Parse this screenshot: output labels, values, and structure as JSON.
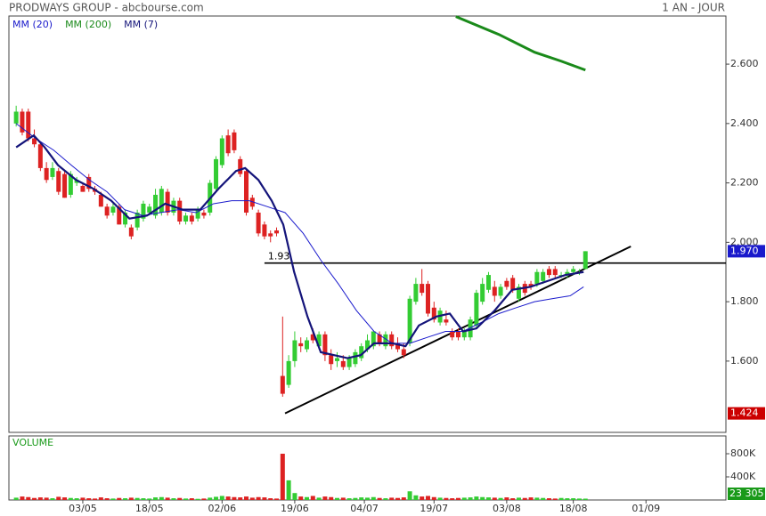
{
  "chart_data": [
    {
      "type": "candlestick",
      "title": "PRODWAYS GROUP - abcbourse.com",
      "period": "1 AN - JOUR",
      "xlim": [
        -1.2,
        117.2
      ],
      "ylim": [
        1.36,
        2.762
      ],
      "yticks": [
        {
          "value": 1.6,
          "label": "1.600"
        },
        {
          "value": 1.8,
          "label": "1.800"
        },
        {
          "value": 2.0,
          "label": "2.000"
        },
        {
          "value": 2.2,
          "label": "2.200"
        },
        {
          "value": 2.4,
          "label": "2.400"
        },
        {
          "value": 2.6,
          "label": "2.600"
        }
      ],
      "xticks": [
        {
          "value": 11,
          "label": "03/05"
        },
        {
          "value": 22,
          "label": "18/05"
        },
        {
          "value": 34,
          "label": "02/06"
        },
        {
          "value": 46,
          "label": "19/06"
        },
        {
          "value": 57.5,
          "label": "04/07"
        },
        {
          "value": 69,
          "label": "19/07"
        },
        {
          "value": 81,
          "label": "03/08"
        },
        {
          "value": 92,
          "label": "18/08"
        },
        {
          "value": 104,
          "label": "01/09"
        }
      ],
      "up_color": "#33cc33",
      "down_color": "#dd2222",
      "candles": [
        [
          2.4,
          2.46,
          2.39,
          2.44
        ],
        [
          2.44,
          2.45,
          2.36,
          2.37
        ],
        [
          2.44,
          2.45,
          2.34,
          2.35
        ],
        [
          2.35,
          2.38,
          2.32,
          2.33
        ],
        [
          2.33,
          2.34,
          2.24,
          2.25
        ],
        [
          2.25,
          2.27,
          2.2,
          2.21
        ],
        [
          2.22,
          2.27,
          2.21,
          2.25
        ],
        [
          2.24,
          2.25,
          2.16,
          2.17
        ],
        [
          2.23,
          2.24,
          2.15,
          2.15
        ],
        [
          2.16,
          2.24,
          2.15,
          2.23
        ],
        [
          2.2,
          2.22,
          2.19,
          2.21
        ],
        [
          2.19,
          2.2,
          2.17,
          2.17
        ],
        [
          2.22,
          2.23,
          2.17,
          2.18
        ],
        [
          2.18,
          2.19,
          2.16,
          2.17
        ],
        [
          2.16,
          2.17,
          2.12,
          2.12
        ],
        [
          2.12,
          2.13,
          2.08,
          2.09
        ],
        [
          2.1,
          2.13,
          2.09,
          2.12
        ],
        [
          2.12,
          2.13,
          2.06,
          2.06
        ],
        [
          2.06,
          2.11,
          2.05,
          2.1
        ],
        [
          2.05,
          2.06,
          2.01,
          2.02
        ],
        [
          2.05,
          2.11,
          2.04,
          2.1
        ],
        [
          2.08,
          2.14,
          2.07,
          2.13
        ],
        [
          2.1,
          2.13,
          2.09,
          2.12
        ],
        [
          2.09,
          2.18,
          2.08,
          2.16
        ],
        [
          2.1,
          2.19,
          2.09,
          2.18
        ],
        [
          2.17,
          2.18,
          2.09,
          2.1
        ],
        [
          2.1,
          2.15,
          2.09,
          2.14
        ],
        [
          2.14,
          2.15,
          2.06,
          2.07
        ],
        [
          2.07,
          2.1,
          2.06,
          2.09
        ],
        [
          2.09,
          2.1,
          2.06,
          2.07
        ],
        [
          2.08,
          2.12,
          2.07,
          2.11
        ],
        [
          2.1,
          2.11,
          2.08,
          2.09
        ],
        [
          2.1,
          2.21,
          2.09,
          2.2
        ],
        [
          2.18,
          2.29,
          2.17,
          2.28
        ],
        [
          2.26,
          2.36,
          2.25,
          2.35
        ],
        [
          2.36,
          2.38,
          2.29,
          2.3
        ],
        [
          2.37,
          2.38,
          2.3,
          2.31
        ],
        [
          2.28,
          2.29,
          2.22,
          2.23
        ],
        [
          2.24,
          2.25,
          2.09,
          2.1
        ],
        [
          2.15,
          2.16,
          2.11,
          2.12
        ],
        [
          2.1,
          2.11,
          2.02,
          2.03
        ],
        [
          2.06,
          2.07,
          2.01,
          2.02
        ],
        [
          2.03,
          2.04,
          2.0,
          2.02
        ],
        [
          2.04,
          2.05,
          2.02,
          2.03
        ],
        [
          1.55,
          1.75,
          1.48,
          1.49
        ],
        [
          1.52,
          1.62,
          1.51,
          1.6
        ],
        [
          1.6,
          1.7,
          1.58,
          1.67
        ],
        [
          1.66,
          1.68,
          1.63,
          1.65
        ],
        [
          1.64,
          1.68,
          1.63,
          1.67
        ],
        [
          1.69,
          1.71,
          1.66,
          1.67
        ],
        [
          1.65,
          1.7,
          1.64,
          1.69
        ],
        [
          1.69,
          1.7,
          1.6,
          1.62
        ],
        [
          1.62,
          1.64,
          1.57,
          1.59
        ],
        [
          1.6,
          1.63,
          1.58,
          1.61
        ],
        [
          1.6,
          1.62,
          1.57,
          1.58
        ],
        [
          1.58,
          1.62,
          1.57,
          1.61
        ],
        [
          1.59,
          1.64,
          1.58,
          1.63
        ],
        [
          1.61,
          1.66,
          1.6,
          1.65
        ],
        [
          1.64,
          1.69,
          1.63,
          1.67
        ],
        [
          1.65,
          1.7,
          1.64,
          1.7
        ],
        [
          1.69,
          1.7,
          1.65,
          1.66
        ],
        [
          1.65,
          1.7,
          1.64,
          1.69
        ],
        [
          1.69,
          1.7,
          1.64,
          1.65
        ],
        [
          1.66,
          1.68,
          1.63,
          1.64
        ],
        [
          1.64,
          1.66,
          1.61,
          1.62
        ],
        [
          1.66,
          1.82,
          1.65,
          1.81
        ],
        [
          1.8,
          1.88,
          1.79,
          1.86
        ],
        [
          1.86,
          1.91,
          1.82,
          1.83
        ],
        [
          1.86,
          1.87,
          1.75,
          1.76
        ],
        [
          1.78,
          1.8,
          1.73,
          1.74
        ],
        [
          1.73,
          1.78,
          1.72,
          1.77
        ],
        [
          1.74,
          1.77,
          1.72,
          1.73
        ],
        [
          1.7,
          1.71,
          1.67,
          1.68
        ],
        [
          1.7,
          1.71,
          1.67,
          1.68
        ],
        [
          1.68,
          1.71,
          1.67,
          1.7
        ],
        [
          1.68,
          1.75,
          1.67,
          1.74
        ],
        [
          1.72,
          1.84,
          1.71,
          1.83
        ],
        [
          1.8,
          1.88,
          1.79,
          1.86
        ],
        [
          1.84,
          1.9,
          1.83,
          1.89
        ],
        [
          1.85,
          1.87,
          1.8,
          1.82
        ],
        [
          1.82,
          1.86,
          1.81,
          1.85
        ],
        [
          1.87,
          1.88,
          1.84,
          1.85
        ],
        [
          1.88,
          1.89,
          1.83,
          1.84
        ],
        [
          1.81,
          1.86,
          1.8,
          1.85
        ],
        [
          1.86,
          1.87,
          1.82,
          1.83
        ],
        [
          1.86,
          1.87,
          1.84,
          1.85
        ],
        [
          1.86,
          1.91,
          1.85,
          1.9
        ],
        [
          1.87,
          1.91,
          1.86,
          1.9
        ],
        [
          1.91,
          1.92,
          1.88,
          1.89
        ],
        [
          1.91,
          1.92,
          1.88,
          1.89
        ],
        [
          1.89,
          1.9,
          1.88,
          1.89
        ],
        [
          1.89,
          1.91,
          1.88,
          1.9
        ],
        [
          1.9,
          1.92,
          1.89,
          1.91
        ],
        [
          1.9,
          1.91,
          1.89,
          1.9
        ],
        [
          1.91,
          1.97,
          1.91,
          1.97
        ]
      ],
      "series": [
        {
          "name": "MM (20)",
          "color": "#1a1acc",
          "width": 1,
          "x": [
            0,
            3.2,
            6.2,
            9.1,
            12.1,
            15,
            17.9,
            20.9,
            23.8,
            26.8,
            29.7,
            32.6,
            35.6,
            38.5,
            41.5,
            44.4,
            47.4,
            50.3,
            53.2,
            56.2,
            59.1,
            62.1,
            65,
            67.9,
            70.9,
            73.8,
            76.8,
            79.7,
            82.6,
            85.6,
            88.5,
            91.5,
            93.7
          ],
          "values": [
            2.4,
            2.35,
            2.31,
            2.26,
            2.21,
            2.17,
            2.11,
            2.09,
            2.1,
            2.11,
            2.1,
            2.13,
            2.14,
            2.14,
            2.12,
            2.1,
            2.03,
            1.94,
            1.86,
            1.77,
            1.7,
            1.66,
            1.66,
            1.68,
            1.7,
            1.7,
            1.73,
            1.76,
            1.78,
            1.8,
            1.81,
            1.82,
            1.85
          ]
        },
        {
          "name": "MM (200)",
          "color": "#1a8a1a",
          "width": 3,
          "x": [
            72.6,
            79.7,
            85.6,
            90,
            94
          ],
          "values": [
            2.76,
            2.7,
            2.64,
            2.61,
            2.58
          ]
        },
        {
          "name": "MM (7)",
          "color": "#14147a",
          "width": 2.2,
          "x": [
            0,
            2.9,
            4.7,
            6.9,
            9.9,
            12.8,
            15.7,
            18.7,
            21.6,
            24.6,
            27.5,
            30.4,
            33.4,
            36.3,
            37.8,
            40,
            42.2,
            44.1,
            45.9,
            48.1,
            50.3,
            52.5,
            54.7,
            56.9,
            59.1,
            62.1,
            64.3,
            66.5,
            69.4,
            71.6,
            73.8,
            76,
            79,
            81.9,
            84.9,
            87.8,
            90.7,
            93.7
          ],
          "values": [
            2.32,
            2.36,
            2.32,
            2.26,
            2.21,
            2.18,
            2.14,
            2.08,
            2.09,
            2.13,
            2.11,
            2.11,
            2.18,
            2.24,
            2.25,
            2.21,
            2.14,
            2.06,
            1.9,
            1.75,
            1.63,
            1.62,
            1.61,
            1.62,
            1.66,
            1.66,
            1.65,
            1.72,
            1.75,
            1.76,
            1.7,
            1.71,
            1.77,
            1.84,
            1.85,
            1.87,
            1.89,
            1.9
          ]
        }
      ],
      "hline": {
        "value": 1.93,
        "label": "1.93",
        "x_start": 41
      },
      "trendline": {
        "x": [
          44.4,
          101.5
        ],
        "values": [
          1.424,
          1.986
        ],
        "start_label": "1.424",
        "start_color": "#cc0000"
      },
      "last": {
        "value": 1.97,
        "label": "1.970",
        "color": "#1a1acc"
      }
    },
    {
      "type": "bar",
      "title": "VOLUME",
      "ylim": [
        0,
        1108000
      ],
      "yticks": [
        {
          "value": 400000,
          "label": "400K"
        },
        {
          "value": 800000,
          "label": "800K"
        }
      ],
      "values": [
        40000,
        60000,
        50000,
        35000,
        45000,
        40000,
        30000,
        55000,
        45000,
        35000,
        30000,
        40000,
        30000,
        25000,
        45000,
        30000,
        25000,
        35000,
        30000,
        40000,
        35000,
        30000,
        25000,
        45000,
        50000,
        40000,
        30000,
        35000,
        25000,
        30000,
        20000,
        25000,
        40000,
        55000,
        70000,
        60000,
        50000,
        45000,
        60000,
        40000,
        50000,
        45000,
        30000,
        25000,
        800000,
        340000,
        120000,
        60000,
        50000,
        70000,
        40000,
        60000,
        50000,
        35000,
        40000,
        30000,
        35000,
        45000,
        40000,
        50000,
        35000,
        30000,
        40000,
        35000,
        45000,
        150000,
        80000,
        60000,
        70000,
        50000,
        40000,
        35000,
        30000,
        35000,
        40000,
        45000,
        60000,
        50000,
        45000,
        40000,
        35000,
        45000,
        30000,
        40000,
        35000,
        45000,
        40000,
        35000,
        30000,
        25000,
        35000,
        30000,
        30000,
        25000,
        23305
      ],
      "last": {
        "value": 23305,
        "label": "23 305",
        "color": "#1a9a1a"
      }
    }
  ]
}
